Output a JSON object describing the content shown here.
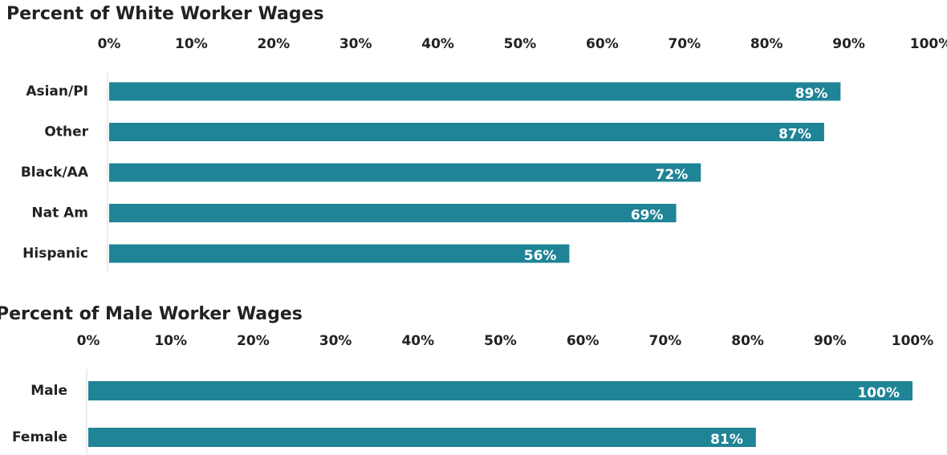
{
  "chart_data": [
    {
      "type": "bar",
      "orientation": "horizontal",
      "title": "Percent of White Worker Wages",
      "categories": [
        "Asian/PI",
        "Other",
        "Black/AA",
        "Nat Am",
        "Hispanic"
      ],
      "values": [
        89,
        87,
        72,
        69,
        56
      ],
      "value_labels": [
        "89%",
        "87%",
        "72%",
        "69%",
        "56%"
      ],
      "color": "#1f8496",
      "xlim": [
        0,
        100
      ],
      "xticks": [
        {
          "value": 0,
          "label": "0%"
        },
        {
          "value": 10,
          "label": "10%"
        },
        {
          "value": 20,
          "label": "20%"
        },
        {
          "value": 30,
          "label": "30%"
        },
        {
          "value": 40,
          "label": "40%"
        },
        {
          "value": 50,
          "label": "50%"
        },
        {
          "value": 60,
          "label": "60%"
        },
        {
          "value": 70,
          "label": "70%"
        },
        {
          "value": 80,
          "label": "80%"
        },
        {
          "value": 90,
          "label": "90%"
        },
        {
          "value": 100,
          "label": "100%"
        }
      ]
    },
    {
      "type": "bar",
      "orientation": "horizontal",
      "title": "Percent of Male Worker Wages",
      "categories": [
        "Male",
        "Female"
      ],
      "values": [
        100,
        81
      ],
      "value_labels": [
        "100%",
        "81%"
      ],
      "color": "#1f8496",
      "xlim": [
        0,
        100
      ],
      "xticks": [
        {
          "value": 0,
          "label": "0%"
        },
        {
          "value": 10,
          "label": "10%"
        },
        {
          "value": 20,
          "label": "20%"
        },
        {
          "value": 30,
          "label": "30%"
        },
        {
          "value": 40,
          "label": "40%"
        },
        {
          "value": 50,
          "label": "50%"
        },
        {
          "value": 60,
          "label": "60%"
        },
        {
          "value": 70,
          "label": "70%"
        },
        {
          "value": 80,
          "label": "80%"
        },
        {
          "value": 90,
          "label": "90%"
        },
        {
          "value": 100,
          "label": "100%"
        }
      ]
    }
  ]
}
